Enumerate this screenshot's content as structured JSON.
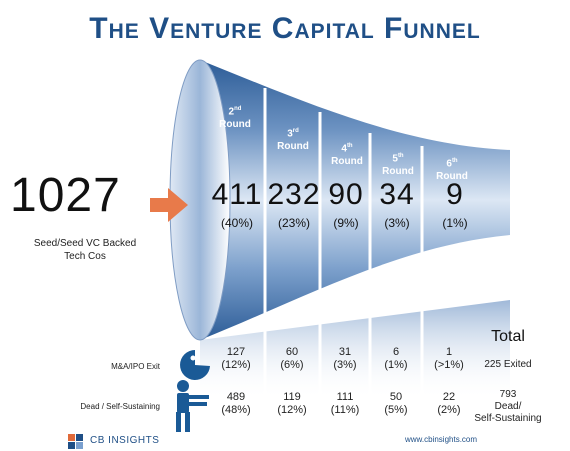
{
  "title": "The Venture Capital Funnel",
  "start": {
    "value": "1027",
    "label_line1": "Seed/Seed VC Backed",
    "label_line2": "Tech Cos"
  },
  "rounds": [
    {
      "ord": "2",
      "sup": "nd",
      "word": "Round",
      "count": "411",
      "pct": "(40%)",
      "exited": "127",
      "exited_pct": "(12%)",
      "dead": "489",
      "dead_pct": "(48%)"
    },
    {
      "ord": "3",
      "sup": "rd",
      "word": "Round",
      "count": "232",
      "pct": "(23%)",
      "exited": "60",
      "exited_pct": "(6%)",
      "dead": "119",
      "dead_pct": "(12%)"
    },
    {
      "ord": "4",
      "sup": "th",
      "word": "Round",
      "count": "90",
      "pct": "(9%)",
      "exited": "31",
      "exited_pct": "(3%)",
      "dead": "111",
      "dead_pct": "(11%)"
    },
    {
      "ord": "5",
      "sup": "th",
      "word": "Round",
      "count": "34",
      "pct": "(3%)",
      "exited": "6",
      "exited_pct": "(1%)",
      "dead": "50",
      "dead_pct": "(5%)"
    },
    {
      "ord": "6",
      "sup": "th",
      "word": "Round",
      "count": "9",
      "pct": "(1%)",
      "exited": "1",
      "exited_pct": "(>1%)",
      "dead": "22",
      "dead_pct": "(2%)"
    }
  ],
  "rows": {
    "exit_label": "M&A/IPO Exit",
    "dead_label": "Dead / Self-Sustaining"
  },
  "totals": {
    "header": "Total",
    "exited": "225 Exited",
    "dead_line1": "793",
    "dead_line2": "Dead/",
    "dead_line3": "Self-Sustaining"
  },
  "footer": {
    "logo": "CB INSIGHTS",
    "website": "www.cbinsights.com"
  },
  "colors": {
    "title": "#1f4f86",
    "funnel_dark": "#2f5f98",
    "funnel_light": "#a8bfdc",
    "arrow": "#e87a4a"
  },
  "icons": {
    "exit": "pacman-icon",
    "dead": "zombie-icon",
    "arrow": "arrow-right-icon",
    "logo": "cb-logo-icon"
  }
}
